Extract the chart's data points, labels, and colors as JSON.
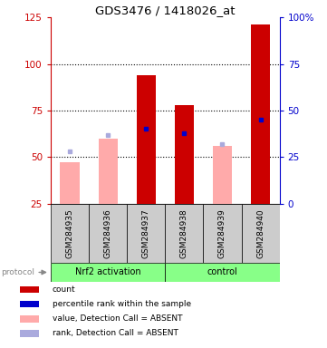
{
  "title": "GDS3476 / 1418026_at",
  "samples": [
    "GSM284935",
    "GSM284936",
    "GSM284937",
    "GSM284938",
    "GSM284939",
    "GSM284940"
  ],
  "count_values": [
    null,
    null,
    94,
    78,
    null,
    121
  ],
  "count_absent_values": [
    47,
    60,
    null,
    null,
    56,
    null
  ],
  "rank_values": [
    53,
    62,
    65,
    63,
    57,
    70
  ],
  "rank_absent": [
    true,
    true,
    false,
    false,
    true,
    false
  ],
  "ylim_left": [
    25,
    125
  ],
  "ylim_right": [
    0,
    100
  ],
  "left_ticks": [
    25,
    50,
    75,
    100,
    125
  ],
  "right_ticks": [
    0,
    25,
    50,
    75,
    100
  ],
  "right_tick_labels": [
    "0",
    "25",
    "50",
    "75",
    "100%"
  ],
  "color_count": "#cc0000",
  "color_rank": "#0000cc",
  "color_count_absent": "#ffaaaa",
  "color_rank_absent": "#aaaadd",
  "color_group": "#88ff88",
  "plot_bg": "#ffffff",
  "sample_bg": "#cccccc",
  "bar_width": 0.5,
  "bar_bottom": 25,
  "group1_label": "Nrf2 activation",
  "group2_label": "control",
  "legend_items": [
    [
      "#cc0000",
      "count"
    ],
    [
      "#0000cc",
      "percentile rank within the sample"
    ],
    [
      "#ffaaaa",
      "value, Detection Call = ABSENT"
    ],
    [
      "#aaaadd",
      "rank, Detection Call = ABSENT"
    ]
  ]
}
